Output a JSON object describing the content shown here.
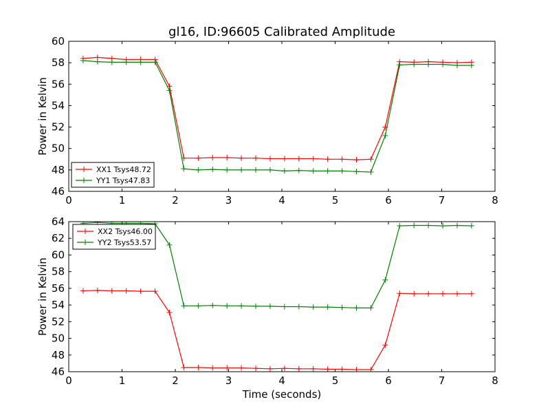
{
  "title": "gl16, ID:96605 Calibrated Amplitude",
  "chart_data": [
    {
      "type": "line",
      "title": "gl16, ID:96605 Calibrated Amplitude",
      "xlabel": "",
      "ylabel": "Power in Kelvin",
      "xlim": [
        0,
        8
      ],
      "ylim": [
        46,
        60
      ],
      "xticks": [
        "0",
        "1",
        "2",
        "3",
        "4",
        "5",
        "6",
        "7",
        "8"
      ],
      "yticks": [
        "46",
        "48",
        "50",
        "52",
        "54",
        "56",
        "58",
        "60"
      ],
      "grid": false,
      "legend_position": "lower-left",
      "x": [
        0.27,
        0.54,
        0.81,
        1.08,
        1.35,
        1.62,
        1.89,
        2.16,
        2.43,
        2.7,
        2.97,
        3.24,
        3.51,
        3.78,
        4.05,
        4.32,
        4.59,
        4.86,
        5.13,
        5.4,
        5.67,
        5.94,
        6.21,
        6.48,
        6.75,
        7.02,
        7.29,
        7.56
      ],
      "series": [
        {
          "name": "XX1 Tsys48.72",
          "color": "#ff0000",
          "values": [
            58.4,
            58.5,
            58.4,
            58.3,
            58.3,
            58.3,
            55.8,
            49.1,
            49.1,
            49.15,
            49.15,
            49.1,
            49.1,
            49.05,
            49.05,
            49.05,
            49.05,
            49.0,
            49.0,
            48.95,
            49.0,
            52.0,
            58.1,
            58.05,
            58.1,
            58.05,
            58.0,
            58.05
          ]
        },
        {
          "name": "YY1 Tsys47.83",
          "color": "#008000",
          "values": [
            58.2,
            58.1,
            58.05,
            58.05,
            58.05,
            58.05,
            55.4,
            48.1,
            48.0,
            48.05,
            48.0,
            48.0,
            48.0,
            48.0,
            47.9,
            47.95,
            47.9,
            47.9,
            47.9,
            47.85,
            47.8,
            51.2,
            57.8,
            57.85,
            57.85,
            57.85,
            57.75,
            57.75
          ]
        }
      ]
    },
    {
      "type": "line",
      "title": "",
      "xlabel": "Time (seconds)",
      "ylabel": "Power in Kelvin",
      "xlim": [
        0,
        8
      ],
      "ylim": [
        46,
        64
      ],
      "xticks": [
        "0",
        "1",
        "2",
        "3",
        "4",
        "5",
        "6",
        "7",
        "8"
      ],
      "yticks": [
        "46",
        "48",
        "50",
        "52",
        "54",
        "56",
        "58",
        "60",
        "62",
        "64"
      ],
      "grid": false,
      "legend_position": "upper-left",
      "x": [
        0.27,
        0.54,
        0.81,
        1.08,
        1.35,
        1.62,
        1.89,
        2.16,
        2.43,
        2.7,
        2.97,
        3.24,
        3.51,
        3.78,
        4.05,
        4.32,
        4.59,
        4.86,
        5.13,
        5.4,
        5.67,
        5.94,
        6.21,
        6.48,
        6.75,
        7.02,
        7.29,
        7.56
      ],
      "series": [
        {
          "name": "XX2 Tsys46.00",
          "color": "#ff0000",
          "values": [
            55.7,
            55.75,
            55.7,
            55.7,
            55.65,
            55.65,
            53.1,
            46.5,
            46.5,
            46.45,
            46.45,
            46.45,
            46.4,
            46.35,
            46.4,
            46.35,
            46.35,
            46.3,
            46.3,
            46.25,
            46.25,
            49.2,
            55.4,
            55.35,
            55.35,
            55.35,
            55.35,
            55.35
          ]
        },
        {
          "name": "YY2 Tsys53.57",
          "color": "#008000",
          "values": [
            63.8,
            63.9,
            63.8,
            63.8,
            63.8,
            63.75,
            61.2,
            53.9,
            53.9,
            53.95,
            53.9,
            53.9,
            53.85,
            53.85,
            53.8,
            53.8,
            53.75,
            53.75,
            53.7,
            53.65,
            53.65,
            57.0,
            63.5,
            63.55,
            63.55,
            63.5,
            63.55,
            63.5
          ]
        }
      ]
    }
  ]
}
